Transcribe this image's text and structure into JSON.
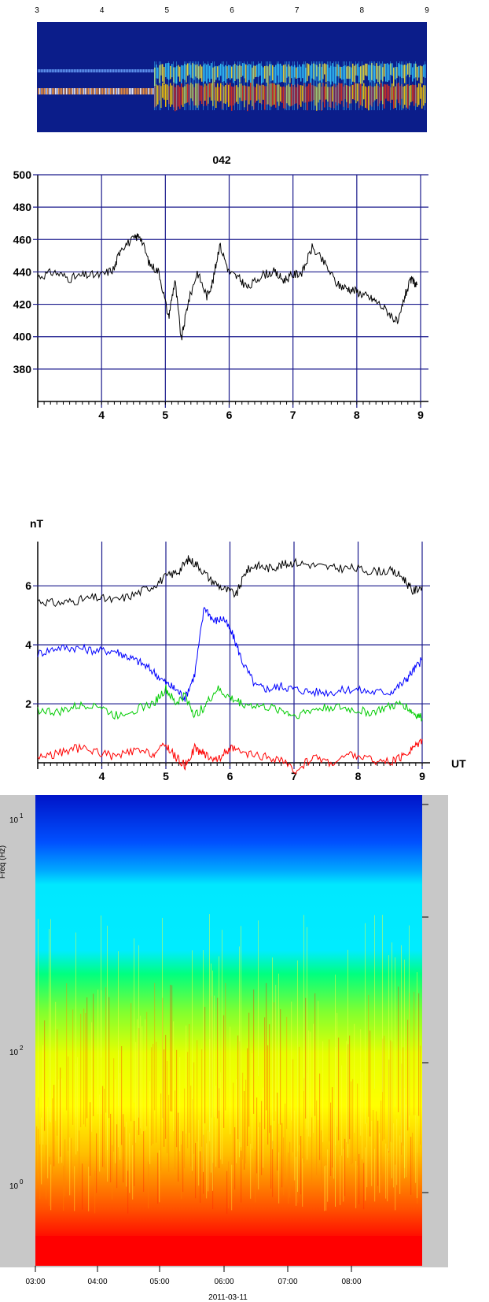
{
  "chart_data": [
    {
      "type": "heatmap",
      "x_ticks": [
        "3",
        "4",
        "5",
        "6",
        "7",
        "8",
        "9"
      ]
    },
    {
      "type": "line",
      "title": "042",
      "ylim": [
        360,
        500
      ],
      "y_ticks": [
        "500",
        "480",
        "460",
        "440",
        "420",
        "400",
        "380"
      ],
      "x_ticks": [
        "4",
        "5",
        "6",
        "7",
        "8",
        "9"
      ],
      "grid": true,
      "series": [
        {
          "color": "#000000",
          "x": [
            3.0,
            3.25,
            3.5,
            3.75,
            4.0,
            4.2,
            4.3,
            4.5,
            4.6,
            4.75,
            4.9,
            5.05,
            5.15,
            5.25,
            5.35,
            5.5,
            5.65,
            5.75,
            5.85,
            6.0,
            6.15,
            6.3,
            6.5,
            6.7,
            6.85,
            7.0,
            7.15,
            7.3,
            7.5,
            7.7,
            7.85,
            8.0,
            8.15,
            8.3,
            8.5,
            8.65,
            8.75,
            8.85,
            8.95
          ],
          "y": [
            437,
            440,
            436,
            438,
            438,
            442,
            455,
            460,
            463,
            445,
            440,
            412,
            435,
            398,
            420,
            440,
            425,
            435,
            457,
            440,
            436,
            430,
            438,
            440,
            435,
            438,
            440,
            455,
            445,
            432,
            430,
            428,
            425,
            422,
            415,
            408,
            425,
            435,
            432
          ]
        }
      ]
    },
    {
      "type": "line",
      "ylabel": "nT",
      "xlabel": "UT",
      "ylim": [
        0,
        7.5
      ],
      "y_ticks": [
        "6",
        "4",
        "2"
      ],
      "x_ticks": [
        "4",
        "5",
        "6",
        "7",
        "8",
        "9"
      ],
      "grid": true,
      "series": [
        {
          "color": "#000000",
          "x": [
            3.0,
            3.3,
            3.6,
            3.9,
            4.2,
            4.5,
            4.8,
            5.0,
            5.2,
            5.35,
            5.5,
            5.7,
            5.9,
            6.1,
            6.25,
            6.4,
            6.6,
            6.8,
            7.0,
            7.3,
            7.6,
            7.9,
            8.2,
            8.5,
            8.7,
            8.85,
            9.0
          ],
          "y": [
            5.5,
            5.4,
            5.5,
            5.6,
            5.5,
            5.7,
            6.0,
            6.3,
            6.5,
            6.9,
            6.7,
            6.2,
            5.9,
            5.7,
            6.5,
            6.7,
            6.6,
            6.7,
            6.8,
            6.7,
            6.6,
            6.6,
            6.5,
            6.5,
            6.3,
            5.8,
            6.0
          ]
        },
        {
          "color": "#0000ff",
          "x": [
            3.0,
            3.3,
            3.6,
            3.9,
            4.2,
            4.4,
            4.6,
            4.8,
            5.0,
            5.15,
            5.3,
            5.45,
            5.6,
            5.75,
            5.9,
            6.05,
            6.2,
            6.4,
            6.6,
            6.8,
            7.0,
            7.3,
            7.6,
            7.9,
            8.2,
            8.5,
            8.7,
            8.85,
            9.0
          ],
          "y": [
            3.7,
            3.9,
            3.9,
            3.8,
            3.8,
            3.6,
            3.4,
            3.1,
            2.7,
            2.5,
            2.2,
            3.0,
            5.3,
            4.8,
            4.9,
            4.3,
            3.4,
            2.6,
            2.5,
            2.6,
            2.5,
            2.4,
            2.4,
            2.5,
            2.4,
            2.4,
            2.7,
            3.1,
            3.5
          ]
        },
        {
          "color": "#00cc00",
          "x": [
            3.0,
            3.3,
            3.6,
            3.9,
            4.2,
            4.5,
            4.8,
            5.0,
            5.15,
            5.3,
            5.45,
            5.6,
            5.8,
            6.0,
            6.2,
            6.5,
            6.8,
            7.0,
            7.3,
            7.6,
            7.9,
            8.2,
            8.5,
            8.7,
            8.85,
            9.0
          ],
          "y": [
            1.8,
            1.7,
            1.9,
            2.0,
            1.6,
            1.8,
            2.0,
            2.5,
            2.0,
            2.3,
            1.6,
            1.9,
            2.5,
            2.2,
            2.0,
            1.9,
            1.8,
            1.6,
            1.8,
            1.9,
            1.8,
            1.7,
            1.9,
            2.0,
            1.7,
            1.5
          ]
        },
        {
          "color": "#ff0000",
          "x": [
            3.0,
            3.3,
            3.6,
            3.9,
            4.2,
            4.5,
            4.8,
            5.0,
            5.15,
            5.3,
            5.45,
            5.6,
            5.8,
            6.0,
            6.2,
            6.5,
            6.8,
            7.0,
            7.3,
            7.6,
            7.9,
            8.2,
            8.5,
            8.7,
            8.85,
            9.0
          ],
          "y": [
            0.2,
            0.3,
            0.5,
            0.4,
            0.2,
            0.4,
            0.3,
            0.6,
            0.2,
            -0.1,
            0.5,
            0.3,
            0.1,
            0.5,
            0.3,
            0.2,
            0.1,
            -0.3,
            0.2,
            0.0,
            0.3,
            0.1,
            0.0,
            0.2,
            0.5,
            0.8
          ]
        }
      ]
    },
    {
      "type": "heatmap",
      "ylabel": "Freq (Hz)",
      "y_ticks": [
        "10",
        "10",
        "10"
      ],
      "y_tick_exponents": [
        "1",
        "2",
        "0"
      ],
      "x_ticks": [
        "03:00",
        "04:00",
        "05:00",
        "06:00",
        "07:00",
        "08:00"
      ],
      "date_label": "2011-03-11",
      "color_bands": [
        "#0000cc",
        "#0066ff",
        "#00e5ff",
        "#00ff66",
        "#ffff00",
        "#ff0000"
      ]
    }
  ]
}
